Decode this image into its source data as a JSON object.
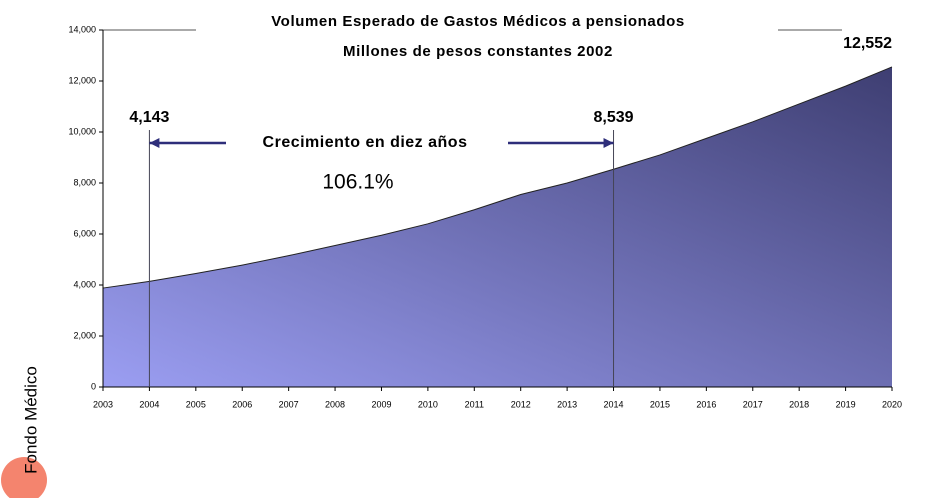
{
  "chart_data": {
    "type": "area",
    "title": "Volumen Esperado de Gastos Médicos a pensionados",
    "subtitle": "Millones de pesos constantes 2002",
    "side_label": "Fondo Médico",
    "annotation": "Crecimiento en diez años",
    "growth_label": "106.1%",
    "x": [
      2003,
      2004,
      2005,
      2006,
      2007,
      2008,
      2009,
      2010,
      2011,
      2012,
      2013,
      2014,
      2015,
      2016,
      2017,
      2018,
      2019,
      2020
    ],
    "values": [
      3880,
      4143,
      4450,
      4780,
      5150,
      5550,
      5950,
      6400,
      6950,
      7550,
      8000,
      8539,
      9100,
      9750,
      10400,
      11100,
      11800,
      12552
    ],
    "value_labels": [
      null,
      "4,143",
      null,
      null,
      null,
      null,
      null,
      null,
      null,
      null,
      null,
      "8,539",
      null,
      null,
      null,
      null,
      null,
      "12,552"
    ],
    "colors": [
      "#9b9ef2",
      "#3e3e72"
    ],
    "xlim": [
      2003,
      2020
    ],
    "xticks": [
      2003,
      2004,
      2005,
      2006,
      2007,
      2008,
      2009,
      2010,
      2011,
      2012,
      2013,
      2014,
      2015,
      2016,
      2017,
      2018,
      2019,
      2020
    ],
    "ylim": [
      0,
      14000
    ],
    "yticks": [
      0,
      {
        "value": 2000,
        "label": "2,000"
      },
      {
        "value": 4000,
        "label": "4,000"
      },
      {
        "value": 6000,
        "label": "6,000"
      },
      {
        "value": 8000,
        "label": "8,000"
      },
      {
        "value": 10000,
        "label": "10,000"
      },
      {
        "value": 12000,
        "label": "12,000"
      },
      {
        "value": 14000,
        "label": "14,000"
      }
    ]
  }
}
